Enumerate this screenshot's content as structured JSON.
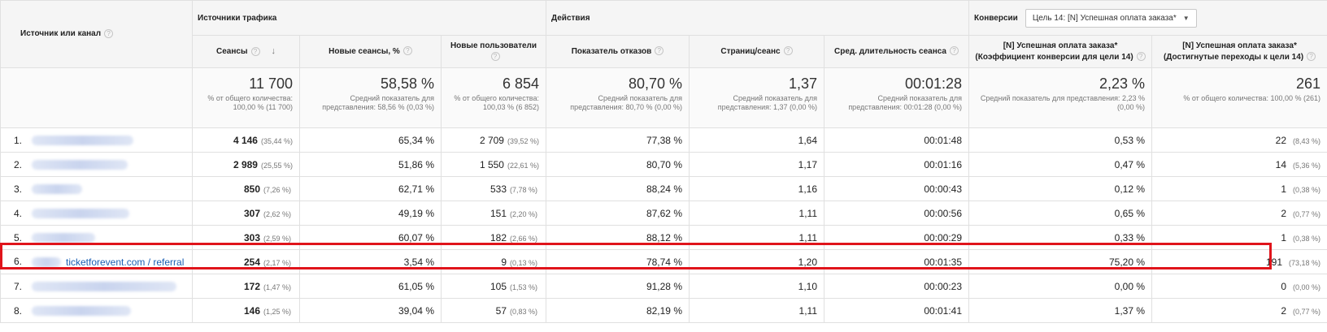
{
  "header": {
    "source_col": "Источник или канал",
    "groups": {
      "traffic": "Источники трафика",
      "actions": "Действия",
      "conversions": "Конверсии"
    },
    "goal_select": "Цель 14: [N] Успешная оплата заказа*",
    "columns": [
      "Сеансы",
      "Новые сеансы, %",
      "Новые пользователи",
      "Показатель отказов",
      "Страниц/сеанс",
      "Сред. длительность сеанса",
      "[N] Успешная оплата заказа* (Коэффициент конверсии для цели 14)",
      "[N] Успешная оплата заказа* (Достигнутые переходы к цели 14)"
    ]
  },
  "totals": [
    {
      "value": "11 700",
      "sub": "% от общего количества: 100,00 % (11 700)"
    },
    {
      "value": "58,58 %",
      "sub": "Средний показатель для представления: 58,56 % (0,03 %)"
    },
    {
      "value": "6 854",
      "sub": "% от общего количества: 100,03 % (6 852)"
    },
    {
      "value": "80,70 %",
      "sub": "Средний показатель для представления: 80,70 % (0,00 %)"
    },
    {
      "value": "1,37",
      "sub": "Средний показатель для представления: 1,37 (0,00 %)"
    },
    {
      "value": "00:01:28",
      "sub": "Средний показатель для представления: 00:01:28 (0,00 %)"
    },
    {
      "value": "2,23 %",
      "sub": "Средний показатель для представления: 2,23 % (0,00 %)"
    },
    {
      "value": "261",
      "sub": "% от общего количества: 100,00 % (261)"
    }
  ],
  "rows": [
    {
      "rank": "1.",
      "source": "",
      "sessions": "4 146",
      "sessions_pct": "(35,44 %)",
      "new_sessions": "65,34 %",
      "new_users": "2 709",
      "new_users_pct": "(39,52 %)",
      "bounce": "77,38 %",
      "pages": "1,64",
      "duration": "00:01:48",
      "conv_rate": "0,53 %",
      "goal": "22",
      "goal_pct": "(8,43 %)"
    },
    {
      "rank": "2.",
      "source": "",
      "sessions": "2 989",
      "sessions_pct": "(25,55 %)",
      "new_sessions": "51,86 %",
      "new_users": "1 550",
      "new_users_pct": "(22,61 %)",
      "bounce": "80,70 %",
      "pages": "1,17",
      "duration": "00:01:16",
      "conv_rate": "0,47 %",
      "goal": "14",
      "goal_pct": "(5,36 %)"
    },
    {
      "rank": "3.",
      "source": "",
      "sessions": "850",
      "sessions_pct": "(7,26 %)",
      "new_sessions": "62,71 %",
      "new_users": "533",
      "new_users_pct": "(7,78 %)",
      "bounce": "88,24 %",
      "pages": "1,16",
      "duration": "00:00:43",
      "conv_rate": "0,12 %",
      "goal": "1",
      "goal_pct": "(0,38 %)"
    },
    {
      "rank": "4.",
      "source": "",
      "sessions": "307",
      "sessions_pct": "(2,62 %)",
      "new_sessions": "49,19 %",
      "new_users": "151",
      "new_users_pct": "(2,20 %)",
      "bounce": "87,62 %",
      "pages": "1,11",
      "duration": "00:00:56",
      "conv_rate": "0,65 %",
      "goal": "2",
      "goal_pct": "(0,77 %)"
    },
    {
      "rank": "5.",
      "source": "",
      "sessions": "303",
      "sessions_pct": "(2,59 %)",
      "new_sessions": "60,07 %",
      "new_users": "182",
      "new_users_pct": "(2,66 %)",
      "bounce": "88,12 %",
      "pages": "1,11",
      "duration": "00:00:29",
      "conv_rate": "0,33 %",
      "goal": "1",
      "goal_pct": "(0,38 %)"
    },
    {
      "rank": "6.",
      "source": "ticketforevent.com / referral",
      "sessions": "254",
      "sessions_pct": "(2,17 %)",
      "new_sessions": "3,54 %",
      "new_users": "9",
      "new_users_pct": "(0,13 %)",
      "bounce": "78,74 %",
      "pages": "1,20",
      "duration": "00:01:35",
      "conv_rate": "75,20 %",
      "goal": "191",
      "goal_pct": "(73,18 %)"
    },
    {
      "rank": "7.",
      "source": "",
      "sessions": "172",
      "sessions_pct": "(1,47 %)",
      "new_sessions": "61,05 %",
      "new_users": "105",
      "new_users_pct": "(1,53 %)",
      "bounce": "91,28 %",
      "pages": "1,10",
      "duration": "00:00:23",
      "conv_rate": "0,00 %",
      "goal": "0",
      "goal_pct": "(0,00 %)"
    },
    {
      "rank": "8.",
      "source": "",
      "sessions": "146",
      "sessions_pct": "(1,25 %)",
      "new_sessions": "39,04 %",
      "new_users": "57",
      "new_users_pct": "(0,83 %)",
      "bounce": "82,19 %",
      "pages": "1,11",
      "duration": "00:01:41",
      "conv_rate": "1,37 %",
      "goal": "2",
      "goal_pct": "(0,77 %)"
    }
  ],
  "colors": {
    "highlight": "#e0141b",
    "link": "#1a5fb4",
    "header_bg": "#f5f5f5"
  }
}
